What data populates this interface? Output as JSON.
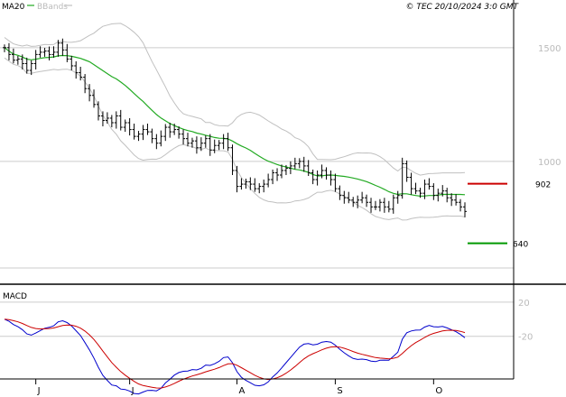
{
  "header": {
    "legend_ma": "MA20",
    "legend_bb": "BBands",
    "copyright": "© TEC 20/10/2024 3:0 GMT"
  },
  "colors": {
    "price": "#000000",
    "ma": "#22aa22",
    "bbands": "#c0c0c0",
    "resistance": "#cc0000",
    "support": "#009900",
    "macd": "#0000cc",
    "signal": "#cc0000",
    "grid": "#cccccc",
    "axis_text": "#bbbbbb"
  },
  "chart_data": [
    {
      "type": "ohlc",
      "ylim": [
        460,
        1650
      ],
      "y_ticks": [
        1500,
        1000
      ],
      "y_tick_labels": [
        "1500",
        "1000"
      ],
      "x_labels": [
        "J",
        "J",
        "A",
        "S",
        "O"
      ],
      "x_label_index": [
        7,
        28,
        52,
        74,
        96
      ],
      "closes": [
        1500,
        1470,
        1445,
        1450,
        1430,
        1400,
        1430,
        1470,
        1480,
        1485,
        1470,
        1480,
        1520,
        1490,
        1450,
        1420,
        1390,
        1370,
        1320,
        1290,
        1250,
        1200,
        1180,
        1190,
        1170,
        1200,
        1150,
        1170,
        1140,
        1110,
        1120,
        1140,
        1130,
        1100,
        1080,
        1110,
        1150,
        1130,
        1140,
        1120,
        1100,
        1080,
        1090,
        1060,
        1080,
        1100,
        1050,
        1070,
        1080,
        1100,
        1060,
        960,
        890,
        900,
        910,
        900,
        880,
        890,
        900,
        920,
        950,
        940,
        960,
        970,
        980,
        990,
        1000,
        980,
        950,
        920,
        940,
        960,
        940,
        920,
        880,
        850,
        840,
        830,
        820,
        830,
        840,
        820,
        800,
        800,
        820,
        800,
        790,
        840,
        850,
        990,
        930,
        880,
        870,
        860,
        900,
        890,
        850,
        860,
        870,
        840,
        830,
        820,
        800,
        780
      ],
      "resistance": {
        "value": 902,
        "label": "902"
      },
      "support": {
        "value": 640,
        "label": "640"
      }
    },
    {
      "type": "line",
      "title": "MACD",
      "ylim": [
        -70,
        40
      ],
      "y_ticks": [
        20,
        -20
      ],
      "y_tick_labels": [
        "20",
        "-20"
      ]
    }
  ]
}
